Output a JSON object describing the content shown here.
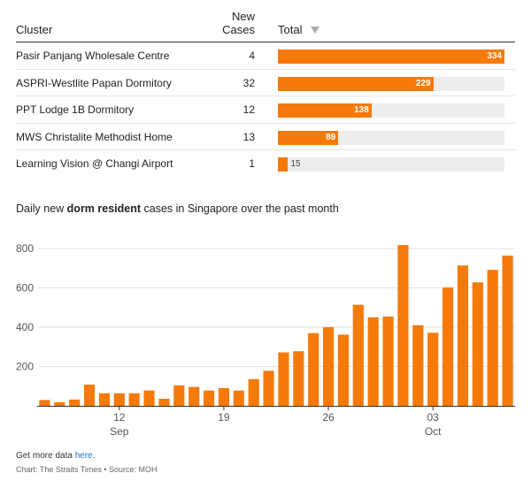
{
  "table": {
    "headers": {
      "cluster": "Cluster",
      "new_cases_line1": "New",
      "new_cases_line2": "Cases",
      "total": "Total"
    },
    "rows": [
      {
        "cluster": "Pasir Panjang Wholesale Centre",
        "new_cases": "4",
        "total": 334,
        "total_label": "334"
      },
      {
        "cluster": "ASPRI-Westlite Papan Dormitory",
        "new_cases": "32",
        "total": 229,
        "total_label": "229"
      },
      {
        "cluster": "PPT Lodge 1B Dormitory",
        "new_cases": "12",
        "total": 138,
        "total_label": "138"
      },
      {
        "cluster": "MWS Christalite Methodist Home",
        "new_cases": "13",
        "total": 89,
        "total_label": "89"
      },
      {
        "cluster": "Learning Vision @ Changi Airport",
        "new_cases": "1",
        "total": 15,
        "total_label": "15"
      }
    ],
    "total_max": 334,
    "bar_color": "#f57a0a",
    "track_color": "#ededed"
  },
  "chart_title": {
    "prefix": "Daily new ",
    "bold": "dorm resident",
    "suffix": " cases in Singapore over the past month"
  },
  "chart_data": {
    "type": "bar",
    "x": [
      "2021-09-07",
      "2021-09-08",
      "2021-09-09",
      "2021-09-10",
      "2021-09-11",
      "2021-09-12",
      "2021-09-13",
      "2021-09-14",
      "2021-09-15",
      "2021-09-16",
      "2021-09-17",
      "2021-09-18",
      "2021-09-19",
      "2021-09-20",
      "2021-09-21",
      "2021-09-22",
      "2021-09-23",
      "2021-09-24",
      "2021-09-25",
      "2021-09-26",
      "2021-09-27",
      "2021-09-28",
      "2021-09-29",
      "2021-09-30",
      "2021-10-01",
      "2021-10-02",
      "2021-10-03",
      "2021-10-04",
      "2021-10-05",
      "2021-10-06",
      "2021-10-07",
      "2021-10-08"
    ],
    "values": [
      30,
      18,
      32,
      108,
      64,
      64,
      64,
      78,
      36,
      104,
      96,
      78,
      90,
      78,
      136,
      178,
      272,
      278,
      370,
      400,
      362,
      514,
      450,
      454,
      818,
      410,
      372,
      602,
      714,
      628,
      692,
      764
    ],
    "ylim": [
      0,
      850
    ],
    "yticks": [
      200,
      400,
      600,
      800
    ],
    "xticks": [
      {
        "date": "2021-09-12",
        "label": "12",
        "month": "Sep"
      },
      {
        "date": "2021-09-19",
        "label": "19",
        "month": ""
      },
      {
        "date": "2021-09-26",
        "label": "26",
        "month": ""
      },
      {
        "date": "2021-10-03",
        "label": "03",
        "month": "Oct"
      }
    ],
    "grid": true,
    "color": "#f57a0a"
  },
  "footer": {
    "get_more_prefix": "Get more data ",
    "get_more_link": "here",
    "get_more_suffix": ".",
    "credit": "Chart: The Straits Times • Source: MOH"
  }
}
